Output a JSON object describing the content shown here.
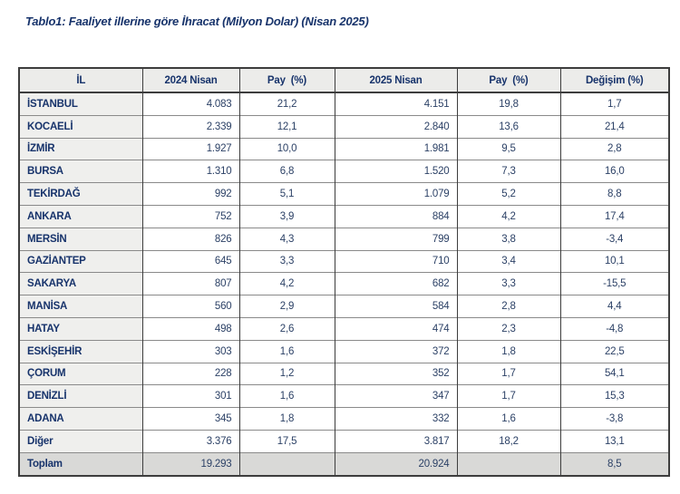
{
  "title": "Tablo1: Faaliyet illerine göre İhracat (Milyon Dolar) (Nisan 2025)",
  "table": {
    "columns": [
      "İL",
      "2024 Nisan",
      "Pay  (%)",
      "2025 Nisan",
      "Pay  (%)",
      "Değişim (%)"
    ],
    "rows": [
      [
        "İSTANBUL",
        "4.083",
        "21,2",
        "4.151",
        "19,8",
        "1,7"
      ],
      [
        "KOCAELİ",
        "2.339",
        "12,1",
        "2.840",
        "13,6",
        "21,4"
      ],
      [
        "İZMİR",
        "1.927",
        "10,0",
        "1.981",
        "9,5",
        "2,8"
      ],
      [
        "BURSA",
        "1.310",
        "6,8",
        "1.520",
        "7,3",
        "16,0"
      ],
      [
        "TEKİRDAĞ",
        "992",
        "5,1",
        "1.079",
        "5,2",
        "8,8"
      ],
      [
        "ANKARA",
        "752",
        "3,9",
        "884",
        "4,2",
        "17,4"
      ],
      [
        "MERSİN",
        "826",
        "4,3",
        "799",
        "3,8",
        "-3,4"
      ],
      [
        "GAZİANTEP",
        "645",
        "3,3",
        "710",
        "3,4",
        "10,1"
      ],
      [
        "SAKARYA",
        "807",
        "4,2",
        "682",
        "3,3",
        "-15,5"
      ],
      [
        "MANİSA",
        "560",
        "2,9",
        "584",
        "2,8",
        "4,4"
      ],
      [
        "HATAY",
        "498",
        "2,6",
        "474",
        "2,3",
        "-4,8"
      ],
      [
        "ESKİŞEHİR",
        "303",
        "1,6",
        "372",
        "1,8",
        "22,5"
      ],
      [
        "ÇORUM",
        "228",
        "1,2",
        "352",
        "1,7",
        "54,1"
      ],
      [
        "DENİZLİ",
        "301",
        "1,6",
        "347",
        "1,7",
        "15,3"
      ],
      [
        "ADANA",
        "345",
        "1,8",
        "332",
        "1,6",
        "-3,8"
      ],
      [
        "Diğer",
        "3.376",
        "17,5",
        "3.817",
        "18,2",
        "13,1"
      ]
    ],
    "total": [
      "Toplam",
      "19.293",
      "",
      "20.924",
      "",
      "8,5"
    ]
  },
  "colors": {
    "title_text": "#17336b",
    "cell_text": "#2c4166",
    "header_bg": "#ececea",
    "label_cell_bg": "#efefed",
    "total_row_bg": "#d9d9d7",
    "border_dark": "#3d3d3d",
    "border_light": "#8a8a8a"
  }
}
